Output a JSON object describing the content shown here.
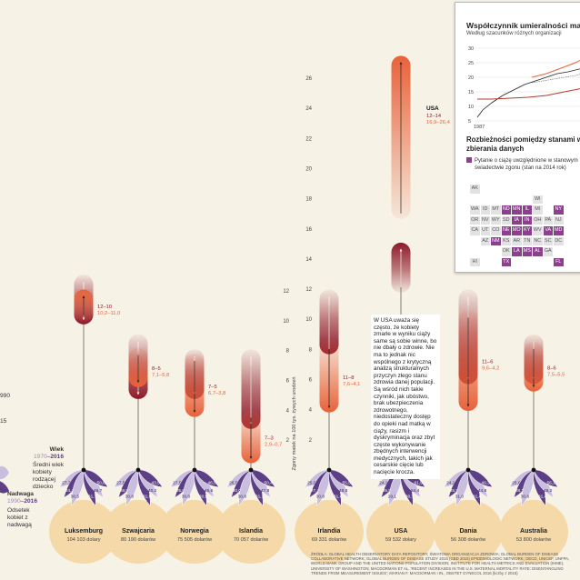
{
  "left_legend": {
    "age_title": "Wiek",
    "age_years_a": "1970",
    "age_years_b": "2016",
    "age_desc": "Średni wiek kobiety rodzącej dziecko",
    "nadwaga_title": "Nadwaga",
    "nadwaga_years_a": "1990",
    "nadwaga_years_b": "2016",
    "nadwaga_desc": "Odsetek kobiet z nadwagą",
    "clip_990": "990",
    "clip_15": "15"
  },
  "axis": {
    "label": "Zgony matek na 100 tys. żywych urodzeń"
  },
  "colors": {
    "background": "#f7f2e6",
    "hist_dark": "#8e1a2a",
    "recent_orange": "#e8623a",
    "petal_purple": "#5d3f86",
    "petal_light": "#c9bede",
    "base_circle": "#f5d9a8",
    "inset_highlight": "#8b3f8c"
  },
  "chart_data": {
    "type": "range",
    "ylabel": "Zgony matek na 100 tys. żywych urodzeń",
    "scale_usa": {
      "ylim": [
        0,
        26
      ],
      "ticks": [
        2,
        4,
        6,
        8,
        10,
        12,
        14,
        16,
        18,
        20,
        22,
        24,
        26
      ]
    },
    "scale_main": {
      "ylim": [
        0,
        12
      ],
      "ticks": [
        2,
        4,
        6,
        8,
        10,
        12
      ]
    },
    "countries": [
      {
        "name": "Luksemburg",
        "gdp": "104 103 dolary",
        "old_range": "12–10",
        "new_range": "10,2–11,0",
        "old": [
          12,
          10
        ],
        "new": [
          10.2,
          11.0
        ],
        "petals": [
          "27,7",
          "24,4",
          "30,5",
          "31,7",
          "46,7",
          "50,8"
        ]
      },
      {
        "name": "Szwajcaria",
        "gdp": "80 190 dolarów",
        "old_range": "8–5",
        "new_range": "7,1–5,8",
        "old": [
          8,
          5
        ],
        "new": [
          7.1,
          5.8
        ],
        "petals": [
          "27,5",
          "28,8",
          "30,8",
          "31,9",
          "40,2",
          "43,5"
        ]
      },
      {
        "name": "Norwegia",
        "gdp": "75 505 dolarów",
        "old_range": "7–5",
        "new_range": "6,7–3,8",
        "old": [
          7,
          5
        ],
        "new": [
          6.7,
          3.8
        ],
        "petals": [
          "27,5",
          "25,6",
          "30,8",
          "30,9",
          "45,5",
          "46,5"
        ]
      },
      {
        "name": "Islandia",
        "gdp": "70 057 dolarów",
        "old_range": "7–3",
        "new_range": "2,9–0,7",
        "old": [
          7,
          3
        ],
        "new": [
          2.9,
          0.7
        ],
        "petals": [
          "26,5",
          "30,0",
          "30,8",
          "31,1",
          "47,8",
          "50,4"
        ]
      },
      {
        "name": "Irlandia",
        "gdp": "69 331 dolarów",
        "old_range": "11–8",
        "new_range": "7,6–4,1",
        "old": [
          11,
          8
        ],
        "new": [
          7.6,
          4.1
        ],
        "petals": [
          "25,0",
          "27,4",
          "30,8",
          "31,4",
          "48,8",
          "55,5"
        ]
      },
      {
        "name": "USA",
        "gdp": "59 532 dolary",
        "old_range": "12–14",
        "new_range": "16,9–26,4",
        "old": [
          12,
          14
        ],
        "new": [
          16.9,
          26.4
        ],
        "petals": [
          "24,1",
          "25,5",
          "29,1",
          "30,7",
          "54,4",
          "61,9"
        ]
      },
      {
        "name": "Dania",
        "gdp": "56 308 dolarów",
        "old_range": "11–6",
        "new_range": "9,6–4,2",
        "old": [
          11,
          6
        ],
        "new": [
          9.6,
          4.2
        ],
        "petals": [
          "24,2",
          "25,9",
          "31,0",
          "31,4",
          "44,8",
          "49,3"
        ]
      },
      {
        "name": "Australia",
        "gdp": "53 800 dolarów",
        "old_range": "8–6",
        "new_range": "7,5–5,5",
        "old": [
          8,
          6
        ],
        "new": [
          7.5,
          5.5
        ],
        "petals": [
          "25,6",
          "28,1",
          "30,8",
          "31,4",
          "46,2",
          "56,1"
        ]
      }
    ]
  },
  "inset": {
    "title": "Współczynnik umieralności matek w USA",
    "subtitle": "Według szacunków różnych organizacji",
    "y_ticks": [
      "30",
      "25",
      "20",
      "15",
      "10",
      "5"
    ],
    "x_start": "1987",
    "title2_line1": "Rozbieżności pomiędzy stanami w sposobie",
    "title2_line2": "zbierania danych",
    "legend_line1": "Pytanie o ciążę uwzględnione w stanowym",
    "legend_line2": "świadectwie zgonu (stan na 2014 rok)",
    "states": [
      [
        "AK",
        "",
        "",
        "",
        "",
        "",
        "",
        "",
        "",
        ""
      ],
      [
        "",
        "",
        "",
        "",
        "",
        "",
        "WI",
        "",
        "",
        ""
      ],
      [
        "WA",
        "ID",
        "MT",
        "ND",
        "MN",
        "IL",
        "MI",
        "",
        "NY",
        ""
      ],
      [
        "OR",
        "NV",
        "WY",
        "SD",
        "IA",
        "IN",
        "OH",
        "PA",
        "NJ",
        ""
      ],
      [
        "CA",
        "UT",
        "CO",
        "NE",
        "MO",
        "KY",
        "WV",
        "VA",
        "MD",
        ""
      ],
      [
        "",
        "AZ",
        "NM",
        "KS",
        "AR",
        "TN",
        "NC",
        "SC",
        "DC",
        ""
      ],
      [
        "",
        "",
        "",
        "OK",
        "LA",
        "MS",
        "AL",
        "GA",
        "",
        ""
      ],
      [
        "HI",
        "",
        "",
        "TX",
        "",
        "",
        "",
        "",
        "FL",
        ""
      ]
    ],
    "highlight": [
      "ND",
      "MN",
      "IL",
      "NY",
      "IA",
      "IN",
      "NE",
      "MO",
      "KY",
      "VA",
      "MD",
      "NM",
      "LA",
      "MS",
      "AL",
      "TX",
      "FL"
    ]
  },
  "textbox": "W USA uważa się często, że kobiety zmarłe w wyniku ciąży same są sobie winne, bo nie dbały o zdrowie. Nie ma to jednak nic wspólnego z krytyczną analizą strukturalnych przyczyn złego stanu zdrowia danej populacji. Są wśród nich takie czynniki, jak ubóstwo, brak ubezpieczenia zdrowotnego, niedostateczny dostęp do opieki nad matką w ciąży, rasizm i dyskryminacja oraz zbyt częste wykonywanie zbędnych interwencji medycznych, takich jak cesarskie cięcie lub nacięcie krocza.",
  "source": "ŹRÓDŁA: GLOBAL HEALTH OBSERVATORY DATA REPOSITORY, ŚWIATOWA ORGANIZACJA ZDROWIA; GLOBAL BURDEN OF DISEASE COLLABORATIVE NETWORK; GLOBAL BURDEN OF DISEASE STUDY 2015 (GBD 2015) EPIDEMIOLOGIC NETWORK; OECD, UNICEF, UNFPA, WORLD BANK GROUP AND THE UNITED NATIONS POPULATION DIVISION; INSTITUTE FOR HEALTH METRICS AND EVALUATION (IHME), UNIVERSITY OF WASHINGTON; MACDORMAN ET AL. 'RECENT INCREASES IN THE U.S. MATERNAL MORTALITY RATE: DISENTANGLING TRENDS FROM MEASUREMENT ISSUES'; MARIAN F. MACDORMAN I IN., OBSTET GYNECOL 2016 (liczby z 2015)"
}
